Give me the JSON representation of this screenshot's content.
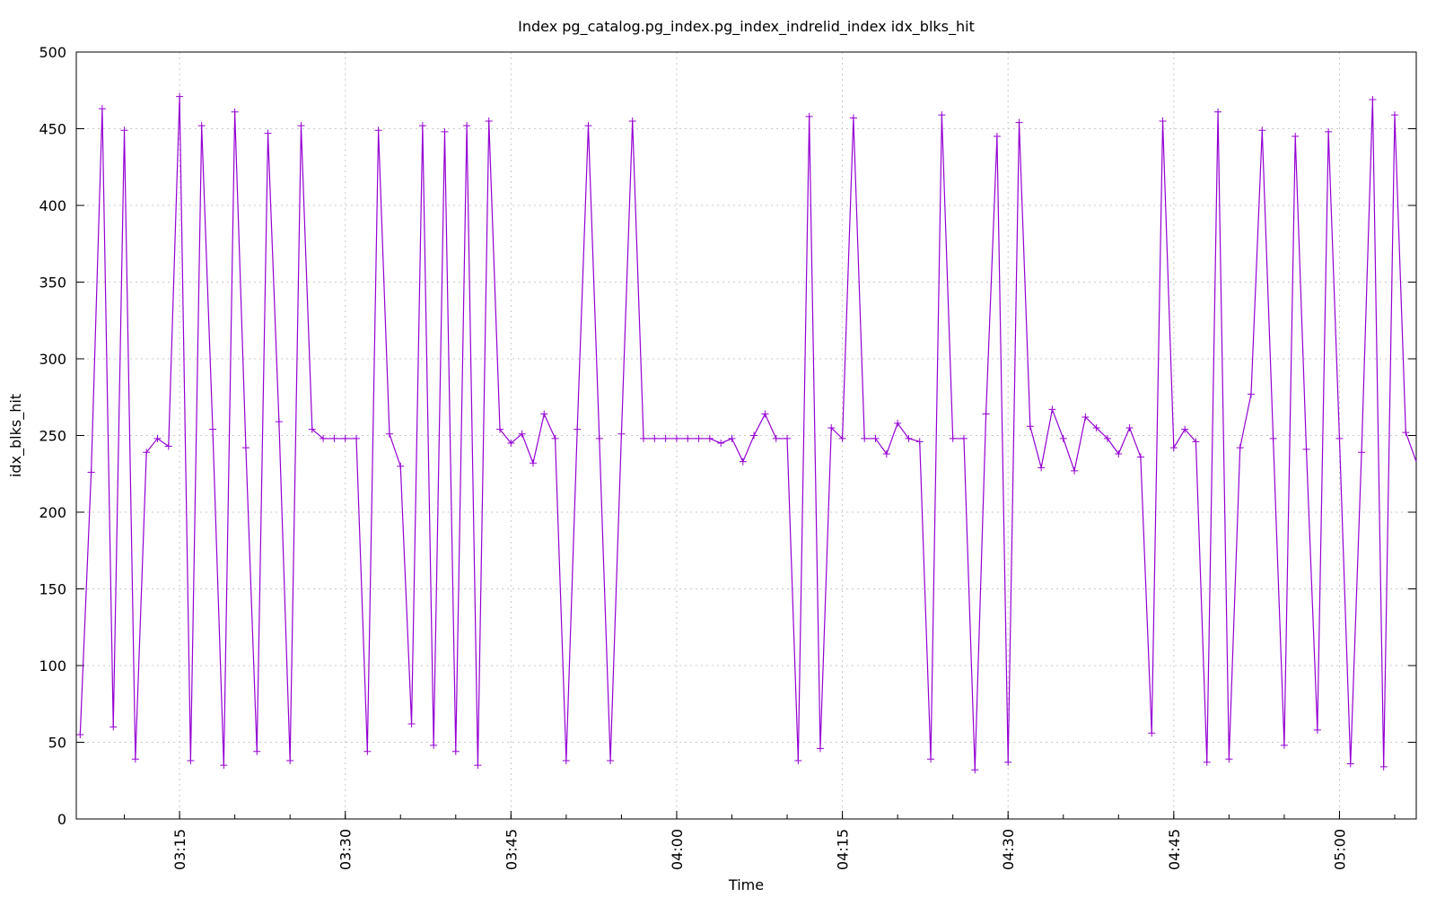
{
  "chart_data": {
    "type": "line",
    "title": "Index pg_catalog.pg_index.pg_index_indrelid_index idx_blks_hit",
    "xlabel": "Time",
    "ylabel": "idx_blks_hit",
    "ylim": [
      0,
      500
    ],
    "yticks": [
      0,
      50,
      100,
      150,
      200,
      250,
      300,
      350,
      400,
      450,
      500
    ],
    "xlim": [
      "03:06",
      "05:07"
    ],
    "xticks": [
      "03:15",
      "03:30",
      "03:45",
      "04:00",
      "04:15",
      "04:30",
      "04:45",
      "05:00"
    ],
    "grid": true,
    "legend": "none",
    "line_color": "#9400d3",
    "series": [
      {
        "x": [
          "03:06",
          "03:07",
          "03:08",
          "03:09",
          "03:10",
          "03:11",
          "03:12",
          "03:13",
          "03:14",
          "03:15",
          "03:16",
          "03:17",
          "03:18",
          "03:19",
          "03:20",
          "03:21",
          "03:22",
          "03:23",
          "03:24",
          "03:25",
          "03:26",
          "03:27",
          "03:28",
          "03:29",
          "03:30",
          "03:31",
          "03:32",
          "03:33",
          "03:34",
          "03:35",
          "03:36",
          "03:37",
          "03:38",
          "03:39",
          "03:40",
          "03:41",
          "03:42",
          "03:43",
          "03:44",
          "03:45",
          "03:46",
          "03:47",
          "03:48",
          "03:49",
          "03:50",
          "03:51",
          "03:52",
          "03:53",
          "03:54",
          "03:55",
          "03:56",
          "03:57",
          "03:58",
          "03:59",
          "04:00",
          "04:01",
          "04:02",
          "04:03",
          "04:04",
          "04:05",
          "04:06",
          "04:07",
          "04:08",
          "04:09",
          "04:10",
          "04:11",
          "04:12",
          "04:13",
          "04:14",
          "04:15",
          "04:16",
          "04:17",
          "04:18",
          "04:19",
          "04:20",
          "04:21",
          "04:22",
          "04:23",
          "04:24",
          "04:25",
          "04:26",
          "04:27",
          "04:28",
          "04:29",
          "04:30",
          "04:31",
          "04:32",
          "04:33",
          "04:34",
          "04:35",
          "04:36",
          "04:37",
          "04:38",
          "04:39",
          "04:40",
          "04:41",
          "04:42",
          "04:43",
          "04:44",
          "04:45",
          "04:46",
          "04:47",
          "04:48",
          "04:49",
          "04:50",
          "04:51",
          "04:52",
          "04:53",
          "04:54",
          "04:55",
          "04:56",
          "04:57",
          "04:58",
          "04:59",
          "05:00",
          "05:01",
          "05:02",
          "05:03",
          "05:04",
          "05:05",
          "05:06",
          "05:07"
        ],
        "y": [
          55,
          226,
          463,
          60,
          449,
          39,
          239,
          248,
          243,
          471,
          38,
          452,
          254,
          35,
          461,
          242,
          44,
          447,
          259,
          38,
          452,
          254,
          248,
          248,
          248,
          248,
          44,
          449,
          251,
          230,
          62,
          452,
          48,
          448,
          44,
          452,
          35,
          455,
          254,
          245,
          251,
          232,
          264,
          248,
          38,
          254,
          452,
          248,
          38,
          251,
          455,
          248,
          248,
          248,
          248,
          248,
          248,
          248,
          245,
          248,
          233,
          250,
          264,
          248,
          248,
          38,
          458,
          46,
          255,
          248,
          457,
          248,
          248,
          238,
          258,
          248,
          246,
          39,
          459,
          248,
          248,
          32,
          264,
          445,
          37,
          454,
          256,
          229,
          267,
          248,
          227,
          262,
          255,
          248,
          238,
          255,
          236,
          56,
          455,
          242,
          254,
          246,
          37,
          461,
          39,
          242,
          277,
          449,
          248,
          48,
          445,
          241,
          58,
          448,
          248,
          36,
          239,
          469,
          34,
          459,
          252,
          233
        ]
      }
    ]
  }
}
